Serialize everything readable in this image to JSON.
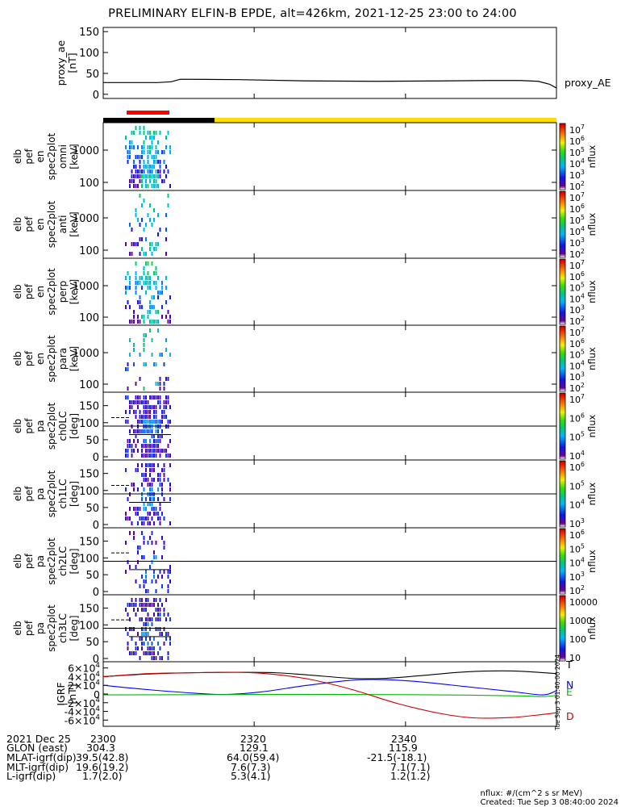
{
  "title": "PRELIMINARY ELFIN-B EPDE, alt=426km, 2021-12-25 23:00 to 24:00",
  "colors": {
    "fov_red": "#ff0000",
    "fov_black": "#000000",
    "fov_yellow": "#ffdd00",
    "bx": "#000000",
    "by": "#0000ff",
    "bz": "#00bb00",
    "bD": "#cc0000"
  },
  "chart_data": [
    {
      "type": "line",
      "id": "proxy_ae",
      "ylabel": [
        "proxy_ae",
        "[nT]"
      ],
      "yticks": [
        0,
        50,
        100,
        150
      ],
      "ylim": [
        -10,
        160
      ],
      "series": [
        {
          "name": "proxy_AE"
        }
      ],
      "x": [
        0,
        0.05,
        0.12,
        0.15,
        0.17,
        0.3,
        0.45,
        0.6,
        0.75,
        0.85,
        0.92,
        0.96,
        0.985,
        1.0
      ],
      "values": [
        28,
        28,
        28,
        30,
        36,
        35,
        32,
        31,
        32,
        33,
        33,
        31,
        24,
        15
      ]
    },
    {
      "type": "heatmap",
      "id": "en_omni",
      "ylabel": [
        "elb",
        "pef",
        "en",
        "spec2plot",
        "omni",
        "[keV]"
      ],
      "yticks": [
        "100",
        "1000"
      ],
      "zlabel": "nflux",
      "zticks": [
        "10^2",
        "10^3",
        "10^4",
        "10^5",
        "10^6",
        "10^7"
      ]
    },
    {
      "type": "heatmap",
      "id": "en_anti",
      "ylabel": [
        "elb",
        "pef",
        "en",
        "spec2plot",
        "anti",
        "[keV]"
      ],
      "yticks": [
        "100",
        "1000"
      ],
      "zlabel": "nflux",
      "zticks": [
        "10^2",
        "10^3",
        "10^4",
        "10^5",
        "10^6",
        "10^7"
      ]
    },
    {
      "type": "heatmap",
      "id": "en_perp",
      "ylabel": [
        "elb",
        "pef",
        "en",
        "spec2plot",
        "perp",
        "[keV]"
      ],
      "yticks": [
        "100",
        "1000"
      ],
      "zlabel": "nflux",
      "zticks": [
        "10^2",
        "10^3",
        "10^4",
        "10^5",
        "10^6",
        "10^7"
      ]
    },
    {
      "type": "heatmap",
      "id": "en_para",
      "ylabel": [
        "elb",
        "pef",
        "en",
        "spec2plot",
        "para",
        "[keV]"
      ],
      "yticks": [
        "100",
        "1000"
      ],
      "zlabel": "nflux",
      "zticks": [
        "10^2",
        "10^3",
        "10^4",
        "10^5",
        "10^6",
        "10^7"
      ]
    },
    {
      "type": "heatmap",
      "id": "pa_ch0",
      "ylabel": [
        "elb",
        "pef",
        "pa",
        "spec2plot",
        "ch0LC",
        "[deg]"
      ],
      "yticks": [
        "0",
        "50",
        "100",
        "150"
      ],
      "zlabel": "nflux",
      "zticks": [
        "10^4",
        "10^5",
        "10^6",
        "10^7"
      ]
    },
    {
      "type": "heatmap",
      "id": "pa_ch1",
      "ylabel": [
        "elb",
        "pef",
        "pa",
        "spec2plot",
        "ch1LC",
        "[deg]"
      ],
      "yticks": [
        "0",
        "50",
        "100",
        "150"
      ],
      "zlabel": "nflux",
      "zticks": [
        "10^3",
        "10^4",
        "10^5",
        "10^6"
      ]
    },
    {
      "type": "heatmap",
      "id": "pa_ch2",
      "ylabel": [
        "elb",
        "pef",
        "pa",
        "spec2plot",
        "ch2LC",
        "[deg]"
      ],
      "yticks": [
        "0",
        "50",
        "100",
        "150"
      ],
      "zlabel": "nflux",
      "zticks": [
        "10^2",
        "10^3",
        "10^4",
        "10^5",
        "10^6"
      ]
    },
    {
      "type": "heatmap",
      "id": "pa_ch3",
      "ylabel": [
        "elb",
        "pef",
        "pa",
        "spec2plot",
        "ch3LC",
        "[deg]"
      ],
      "yticks": [
        "0",
        "50",
        "100",
        "150"
      ],
      "zlabel": "nflux",
      "zticks": [
        "10",
        "100",
        "1000",
        "10000"
      ]
    },
    {
      "type": "line",
      "id": "igrf",
      "ylabel": [
        "IGRF",
        "[nT]"
      ],
      "yticks": [
        "-6×10^4",
        "-4×10^4",
        "-2×10^4",
        "0",
        "2×10^4",
        "4×10^4",
        "6×10^4"
      ],
      "ylim": [
        -65000,
        65000
      ],
      "series": [
        {
          "name": "T",
          "x": [
            0,
            0.1,
            0.2,
            0.3,
            0.38,
            0.45,
            0.55,
            0.62,
            0.72,
            0.8,
            0.9,
            1.0
          ],
          "values": [
            40000,
            46000,
            49000,
            50000,
            49000,
            44000,
            36000,
            36000,
            44000,
            51000,
            53000,
            47000
          ]
        },
        {
          "name": "N",
          "x": [
            0,
            0.1,
            0.2,
            0.27,
            0.35,
            0.45,
            0.55,
            0.62,
            0.7,
            0.8,
            0.9,
            0.97,
            1.0
          ],
          "values": [
            20000,
            10000,
            2000,
            -1000,
            5000,
            20000,
            32000,
            33000,
            28000,
            17000,
            6000,
            -2000,
            8000
          ]
        },
        {
          "name": "E",
          "x": [
            0,
            0.2,
            0.4,
            0.6,
            0.8,
            0.93,
            0.97,
            1.0
          ],
          "values": [
            -2000,
            -1500,
            -800,
            -1200,
            -2500,
            -4500,
            -6000,
            -3000
          ]
        },
        {
          "name": "D",
          "x": [
            0,
            0.1,
            0.2,
            0.3,
            0.38,
            0.46,
            0.55,
            0.65,
            0.75,
            0.82,
            0.9,
            0.97,
            1.0
          ],
          "values": [
            40000,
            47000,
            49000,
            50000,
            45000,
            33000,
            10000,
            -22000,
            -46000,
            -55000,
            -54000,
            -47000,
            -43000
          ]
        }
      ]
    }
  ],
  "xaxis": {
    "ticks": [
      "2300",
      "2320",
      "2340"
    ]
  },
  "footer": {
    "rows": [
      {
        "label": "2021 Dec 25",
        "v0": "2300",
        "v1": "2320",
        "v2": "2340"
      },
      {
        "label": "GLON (east)",
        "v0": "304.3",
        "v1": "129.1",
        "v2": "115.9"
      },
      {
        "label": "MLAT-igrf(dip)",
        "v0": "39.5(42.8)",
        "v1": "64.0(59.4)",
        "v2": "-21.5(-18.1)"
      },
      {
        "label": "MLT-igrf(dip)",
        "v0": "19.6(19.2)",
        "v1": "7.6(7.3)",
        "v2": "7.1(7.1)"
      },
      {
        "label": "L-igrf(dip)",
        "v0": "1.7(2.0)",
        "v1": "5.3(4.1)",
        "v2": "1.2(1.2)"
      }
    ],
    "units_note": "nflux: #/(cm^2 s sr MeV)",
    "created": "Created: Tue Sep  3 08:40:00 2024",
    "side_stamp": "Tue Sep  3 01:40:00 2024"
  }
}
